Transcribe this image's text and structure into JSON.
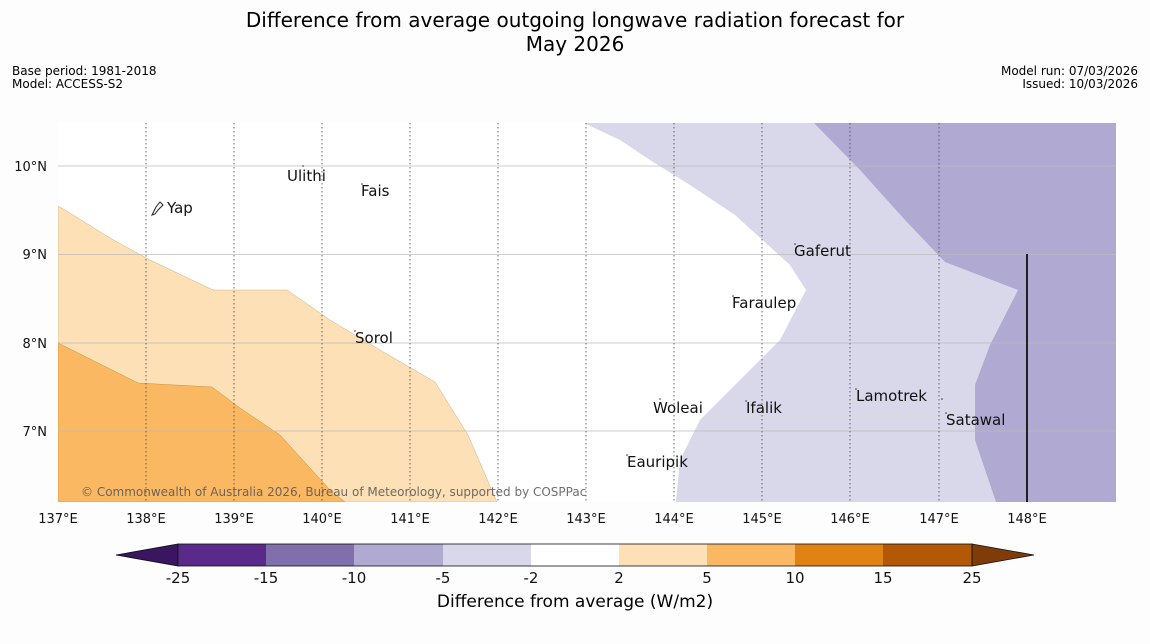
{
  "title": {
    "line1": "Difference from average outgoing longwave radiation forecast for",
    "line2": "May 2026"
  },
  "meta_left": {
    "base_period": "Base period: 1981-2018",
    "model": "Model: ACCESS-S2"
  },
  "meta_right": {
    "model_run": "Model run: 07/03/2026",
    "issued": "Issued: 10/03/2026"
  },
  "map": {
    "lon_labels": [
      "137°E",
      "138°E",
      "139°E",
      "140°E",
      "141°E",
      "142°E",
      "143°E",
      "144°E",
      "145°E",
      "146°E",
      "147°E",
      "148°E"
    ],
    "lat_labels": [
      "10°N",
      "9°N",
      "8°N",
      "7°N"
    ],
    "places": [
      "Ulithi",
      "Fais",
      "Yap",
      "Gaferut",
      "Faraulep",
      "Sorol",
      "Lamotrek",
      "Woleai",
      "Ifalik",
      "Satawal",
      "Eauripik"
    ],
    "copyright": "© Commonwealth of Australia 2026, Bureau of Meteorology, supported by COSPPac"
  },
  "colorbar": {
    "ticks": [
      "-25",
      "-15",
      "-10",
      "-5",
      "-2",
      "2",
      "5",
      "10",
      "15",
      "25"
    ],
    "colors": [
      "#3a1560",
      "#5a2a8a",
      "#7f6fac",
      "#b0aad2",
      "#d8d8ea",
      "#ffffff",
      "#fde0b6",
      "#fbb862",
      "#e08214",
      "#b35806",
      "#7f3b08"
    ],
    "label": "Difference from average (W/m2)"
  }
}
